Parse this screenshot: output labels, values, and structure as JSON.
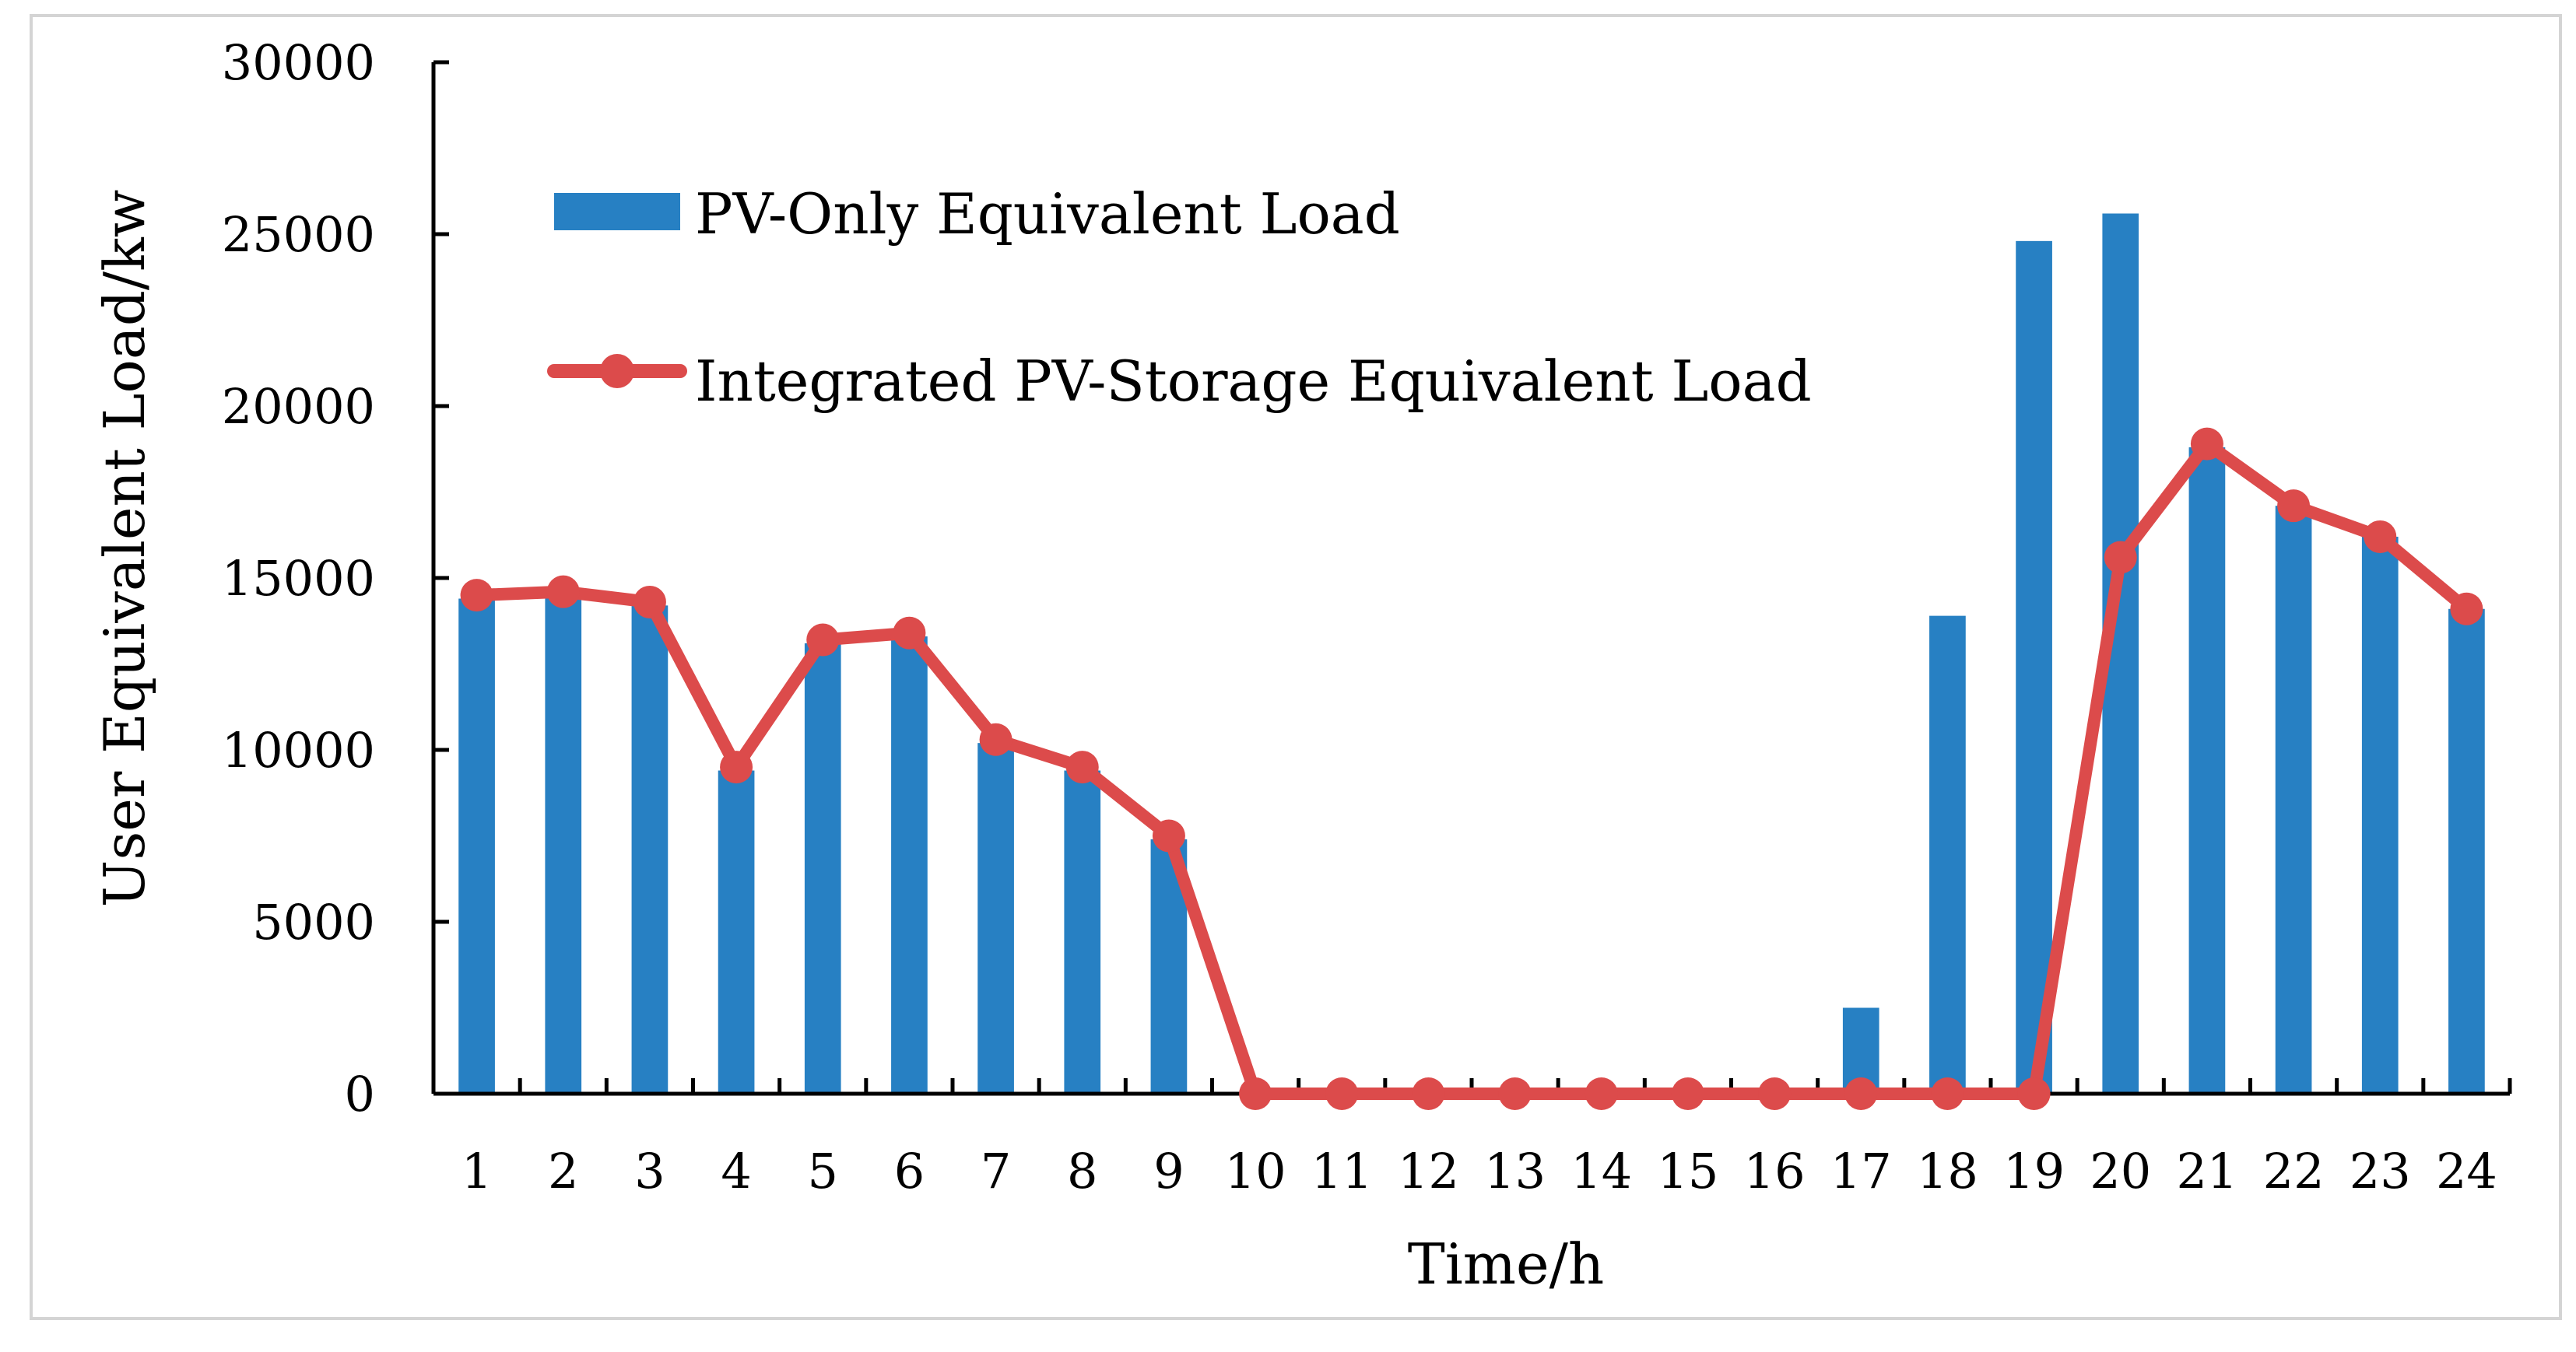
{
  "chart_data": {
    "type": "bar+line",
    "title": "",
    "xlabel": "Time/h",
    "ylabel": "User Equivalent Load/kw",
    "ylim": [
      0,
      30000
    ],
    "yticks": [
      "0",
      "5000",
      "10000",
      "15000",
      "20000",
      "25000",
      "30000"
    ],
    "yticks_values": [
      0,
      5000,
      10000,
      15000,
      20000,
      25000,
      30000
    ],
    "categories": [
      "1",
      "2",
      "3",
      "4",
      "5",
      "6",
      "7",
      "8",
      "9",
      "10",
      "11",
      "12",
      "13",
      "14",
      "15",
      "16",
      "17",
      "18",
      "19",
      "20",
      "21",
      "22",
      "23",
      "24"
    ],
    "grid": false,
    "legend_position": "top-left",
    "series": [
      {
        "name": "PV-Only Equivalent Load",
        "kind": "bar",
        "color": "#2780c3",
        "values": [
          14400,
          14600,
          14200,
          9400,
          13100,
          13300,
          10200,
          9400,
          7400,
          0,
          0,
          0,
          0,
          0,
          0,
          0,
          2500,
          13900,
          24800,
          25600,
          18800,
          17100,
          16200,
          14100
        ]
      },
      {
        "name": "Integrated PV-Storage Equivalent Load",
        "kind": "line",
        "color": "#dc4b4b",
        "values": [
          14500,
          14600,
          14300,
          9500,
          13200,
          13400,
          10300,
          9500,
          7500,
          0,
          0,
          0,
          0,
          0,
          0,
          0,
          0,
          0,
          0,
          15600,
          18900,
          17100,
          16200,
          14100
        ]
      }
    ]
  }
}
